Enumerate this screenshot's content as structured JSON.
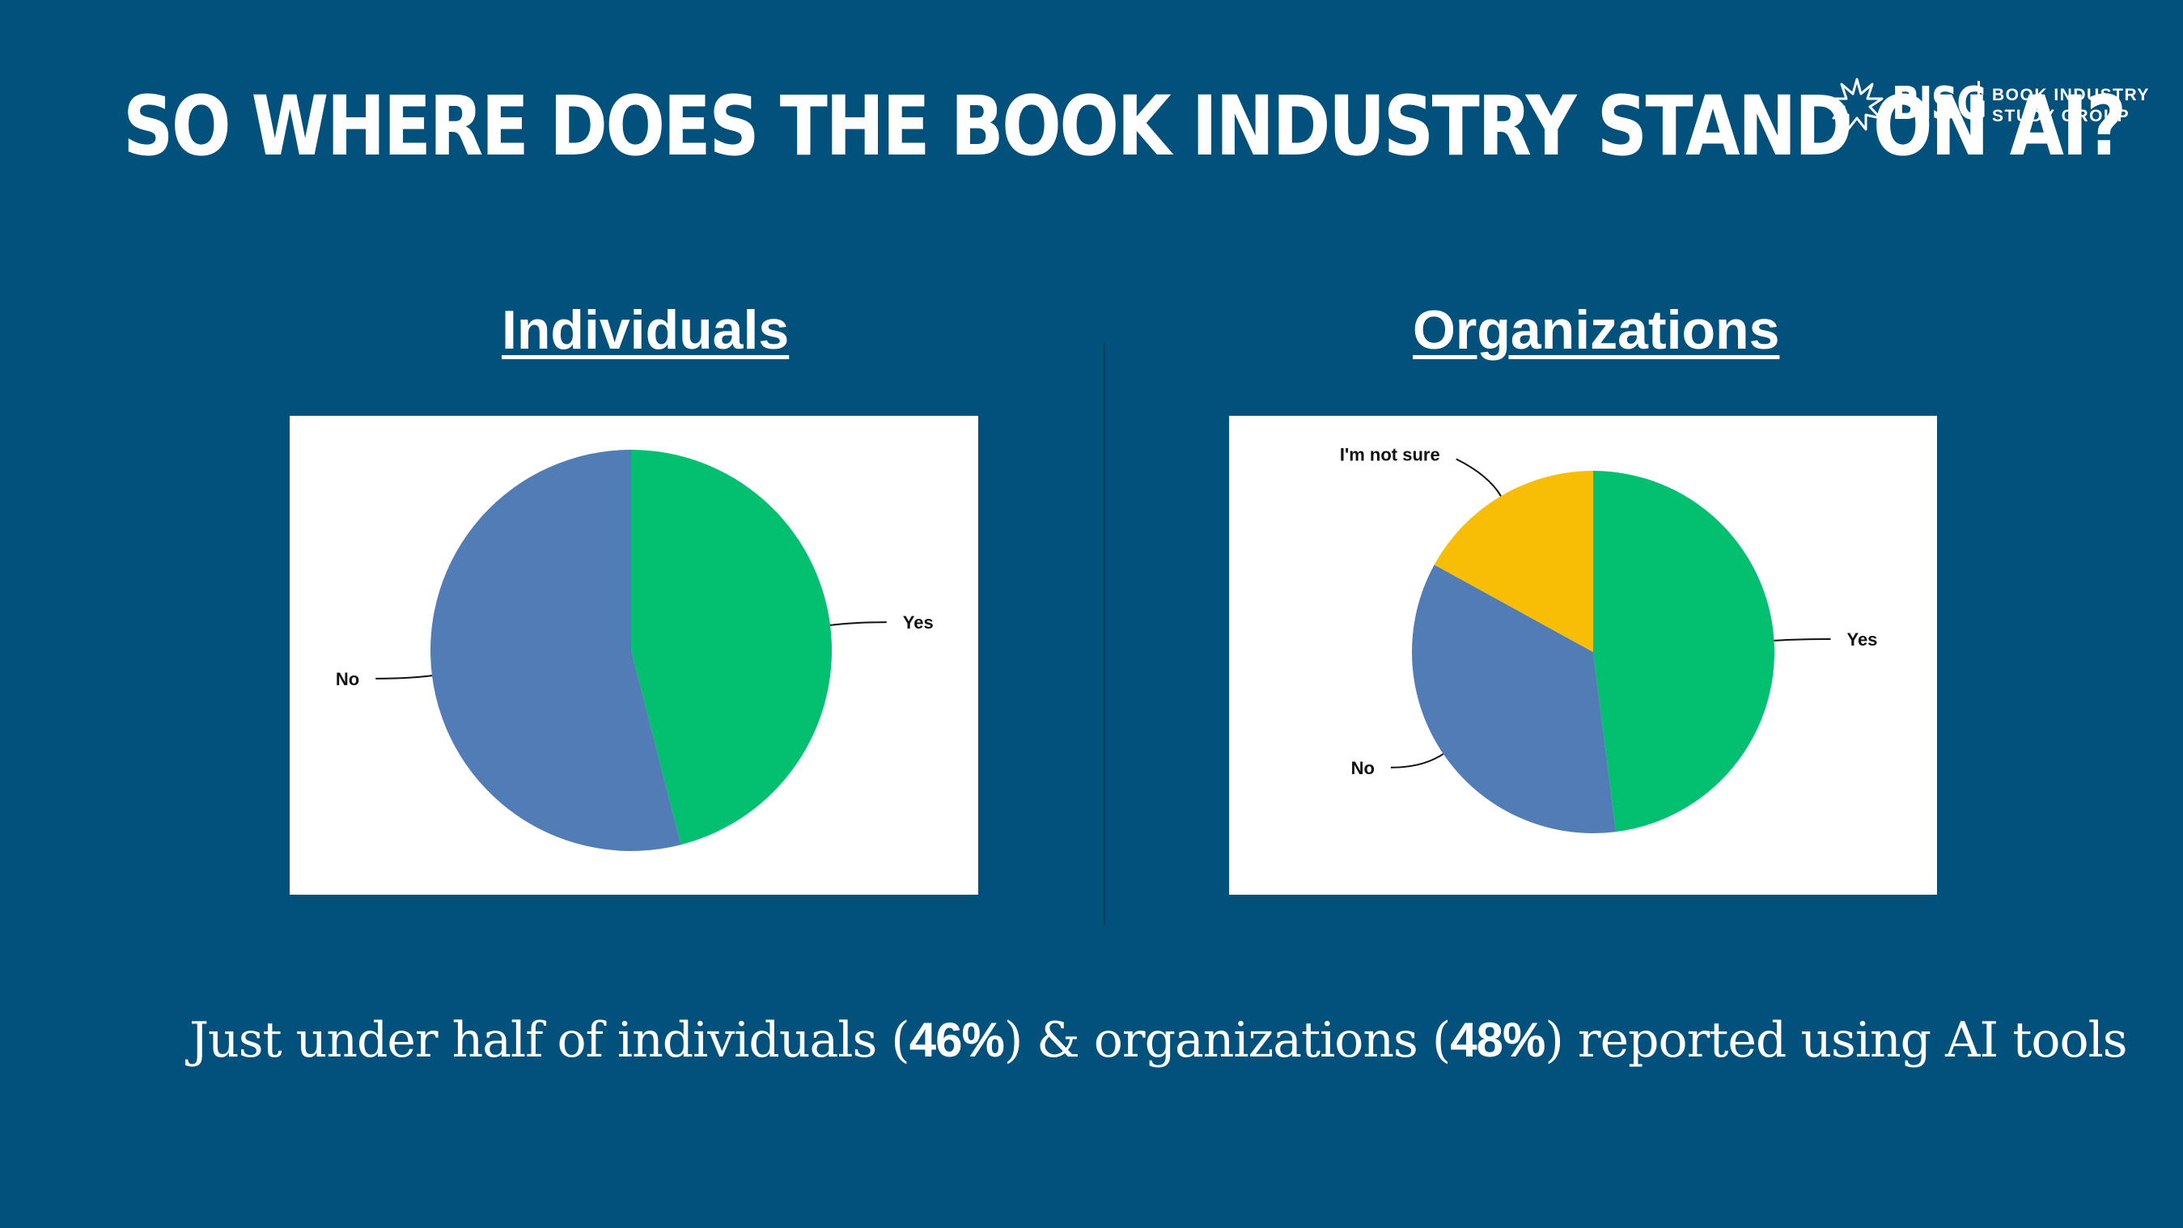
{
  "slide": {
    "title": "SO WHERE DOES THE BOOK INDUSTRY STAND ON AI?",
    "logo": {
      "mark": "BISG",
      "line1": "BOOK INDUSTRY",
      "line2": "STUDY GROUP"
    },
    "caption": {
      "part1": "Just under half of individuals (",
      "pct1": "46%",
      "part2": ") & organizations (",
      "pct2": "48%",
      "part3": ") reported using AI tools"
    }
  },
  "colors": {
    "background": "#02517d",
    "yes": "#02c070",
    "no": "#527cb5",
    "not_sure": "#f8be06"
  },
  "chart_data": [
    {
      "type": "pie",
      "title": "Individuals",
      "labels": [
        "Yes",
        "No"
      ],
      "values": [
        46,
        54
      ],
      "colors": [
        "#02c070",
        "#527cb5"
      ]
    },
    {
      "type": "pie",
      "title": "Organizations",
      "labels": [
        "Yes",
        "No",
        "I'm not sure"
      ],
      "values": [
        48,
        35,
        17
      ],
      "colors": [
        "#02c070",
        "#527cb5",
        "#f8be06"
      ]
    }
  ]
}
